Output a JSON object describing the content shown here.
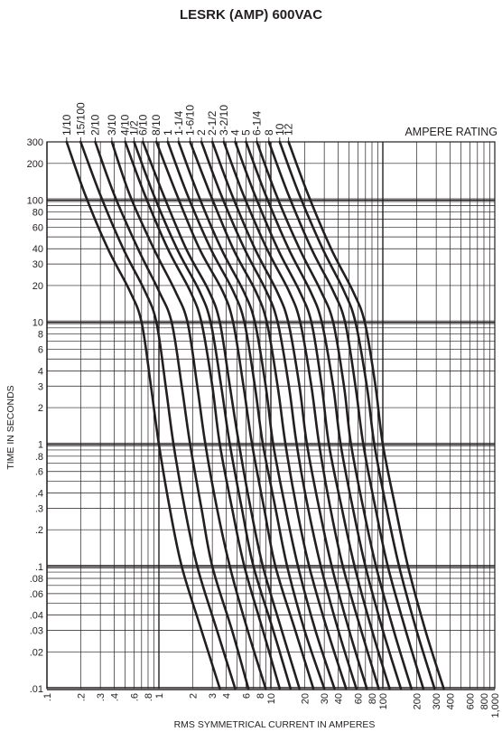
{
  "chart_data": {
    "type": "line",
    "title": "LESRK (AMP) 600VAC",
    "xlabel": "RMS SYMMETRICAL CURRENT IN AMPERES",
    "ylabel": "TIME IN SECONDS",
    "legend_title": "AMPERE RATING",
    "x_scale": "log",
    "y_scale": "log",
    "xlim": [
      0.1,
      1000
    ],
    "ylim": [
      0.01,
      300
    ],
    "grid": true,
    "x_ticks": [
      {
        "v": 0.1,
        "label": ".1"
      },
      {
        "v": 0.2,
        "label": ".2"
      },
      {
        "v": 0.3,
        "label": ".3"
      },
      {
        "v": 0.4,
        "label": ".4"
      },
      {
        "v": 0.6,
        "label": ".6"
      },
      {
        "v": 0.8,
        "label": ".8"
      },
      {
        "v": 1,
        "label": "1"
      },
      {
        "v": 2,
        "label": "2"
      },
      {
        "v": 3,
        "label": "3"
      },
      {
        "v": 4,
        "label": "4"
      },
      {
        "v": 6,
        "label": "6"
      },
      {
        "v": 8,
        "label": "8"
      },
      {
        "v": 10,
        "label": "10"
      },
      {
        "v": 20,
        "label": "20"
      },
      {
        "v": 30,
        "label": "30"
      },
      {
        "v": 40,
        "label": "40"
      },
      {
        "v": 60,
        "label": "60"
      },
      {
        "v": 80,
        "label": "80"
      },
      {
        "v": 100,
        "label": "100"
      },
      {
        "v": 200,
        "label": "200"
      },
      {
        "v": 300,
        "label": "300"
      },
      {
        "v": 400,
        "label": "400"
      },
      {
        "v": 600,
        "label": "600"
      },
      {
        "v": 800,
        "label": "800"
      },
      {
        "v": 1000,
        "label": "1,000"
      }
    ],
    "y_ticks": [
      {
        "v": 300,
        "label": "300"
      },
      {
        "v": 200,
        "label": "200"
      },
      {
        "v": 100,
        "label": "100"
      },
      {
        "v": 80,
        "label": "80"
      },
      {
        "v": 60,
        "label": "60"
      },
      {
        "v": 40,
        "label": "40"
      },
      {
        "v": 30,
        "label": "30"
      },
      {
        "v": 20,
        "label": "20"
      },
      {
        "v": 10,
        "label": "10"
      },
      {
        "v": 8,
        "label": "8"
      },
      {
        "v": 6,
        "label": "6"
      },
      {
        "v": 4,
        "label": "4"
      },
      {
        "v": 3,
        "label": "3"
      },
      {
        "v": 2,
        "label": "2"
      },
      {
        "v": 1,
        "label": "1"
      },
      {
        "v": 0.8,
        "label": ".8"
      },
      {
        "v": 0.6,
        "label": ".6"
      },
      {
        "v": 0.4,
        "label": ".4"
      },
      {
        "v": 0.3,
        "label": ".3"
      },
      {
        "v": 0.2,
        "label": ".2"
      },
      {
        "v": 0.1,
        "label": ".1"
      },
      {
        "v": 0.08,
        "label": ".08"
      },
      {
        "v": 0.06,
        "label": ".06"
      },
      {
        "v": 0.04,
        "label": ".04"
      },
      {
        "v": 0.03,
        "label": ".03"
      },
      {
        "v": 0.02,
        "label": ".02"
      },
      {
        "v": 0.01,
        "label": ".01"
      }
    ],
    "series": [
      {
        "name": "1/10",
        "points": [
          [
            0.15,
            300
          ],
          [
            0.22,
            110
          ],
          [
            0.35,
            40
          ],
          [
            0.55,
            18
          ],
          [
            0.7,
            10
          ],
          [
            0.85,
            3
          ],
          [
            1.0,
            1
          ],
          [
            1.25,
            0.3
          ],
          [
            1.6,
            0.1
          ],
          [
            2.4,
            0.03
          ],
          [
            3.5,
            0.01
          ]
        ]
      },
      {
        "name": "15/100",
        "points": [
          [
            0.2,
            300
          ],
          [
            0.3,
            110
          ],
          [
            0.48,
            40
          ],
          [
            0.75,
            18
          ],
          [
            0.95,
            10
          ],
          [
            1.15,
            3
          ],
          [
            1.35,
            1
          ],
          [
            1.7,
            0.3
          ],
          [
            2.2,
            0.1
          ],
          [
            3.3,
            0.03
          ],
          [
            4.8,
            0.01
          ]
        ]
      },
      {
        "name": "2/10",
        "points": [
          [
            0.27,
            300
          ],
          [
            0.4,
            110
          ],
          [
            0.65,
            40
          ],
          [
            1.0,
            18
          ],
          [
            1.3,
            10
          ],
          [
            1.6,
            3
          ],
          [
            1.9,
            1
          ],
          [
            2.4,
            0.3
          ],
          [
            3.0,
            0.1
          ],
          [
            4.5,
            0.03
          ],
          [
            6.3,
            0.01
          ]
        ]
      },
      {
        "name": "3/10",
        "points": [
          [
            0.38,
            300
          ],
          [
            0.55,
            110
          ],
          [
            0.9,
            40
          ],
          [
            1.4,
            18
          ],
          [
            1.8,
            10
          ],
          [
            2.2,
            3
          ],
          [
            2.6,
            1
          ],
          [
            3.3,
            0.3
          ],
          [
            4.3,
            0.1
          ],
          [
            6.2,
            0.03
          ],
          [
            9.0,
            0.01
          ]
        ]
      },
      {
        "name": "4/10",
        "points": [
          [
            0.5,
            300
          ],
          [
            0.75,
            110
          ],
          [
            1.2,
            40
          ],
          [
            1.9,
            18
          ],
          [
            2.4,
            10
          ],
          [
            3.0,
            3
          ],
          [
            3.5,
            1
          ],
          [
            4.5,
            0.3
          ],
          [
            5.8,
            0.1
          ],
          [
            8.5,
            0.03
          ],
          [
            12.0,
            0.01
          ]
        ]
      },
      {
        "name": "1/2",
        "points": [
          [
            0.6,
            300
          ],
          [
            0.9,
            110
          ],
          [
            1.45,
            40
          ],
          [
            2.3,
            18
          ],
          [
            2.9,
            10
          ],
          [
            3.6,
            3
          ],
          [
            4.3,
            1
          ],
          [
            5.5,
            0.3
          ],
          [
            7.0,
            0.1
          ],
          [
            10.5,
            0.03
          ],
          [
            15.0,
            0.01
          ]
        ]
      },
      {
        "name": "6/10",
        "points": [
          [
            0.72,
            300
          ],
          [
            1.1,
            110
          ],
          [
            1.75,
            40
          ],
          [
            2.8,
            18
          ],
          [
            3.5,
            10
          ],
          [
            4.3,
            3
          ],
          [
            5.2,
            1
          ],
          [
            6.6,
            0.3
          ],
          [
            8.5,
            0.1
          ],
          [
            12.5,
            0.03
          ],
          [
            18.0,
            0.01
          ]
        ]
      },
      {
        "name": "8/10",
        "points": [
          [
            0.95,
            300
          ],
          [
            1.45,
            110
          ],
          [
            2.3,
            40
          ],
          [
            3.7,
            18
          ],
          [
            4.6,
            10
          ],
          [
            5.7,
            3
          ],
          [
            6.8,
            1
          ],
          [
            8.7,
            0.3
          ],
          [
            11.0,
            0.1
          ],
          [
            16.5,
            0.03
          ],
          [
            24.0,
            0.01
          ]
        ]
      },
      {
        "name": "1",
        "points": [
          [
            1.2,
            300
          ],
          [
            1.8,
            110
          ],
          [
            2.9,
            40
          ],
          [
            4.6,
            18
          ],
          [
            5.8,
            10
          ],
          [
            7.2,
            3
          ],
          [
            8.5,
            1
          ],
          [
            11.0,
            0.3
          ],
          [
            14.0,
            0.1
          ],
          [
            20.0,
            0.03
          ],
          [
            30.0,
            0.01
          ]
        ]
      },
      {
        "name": "1-1/4",
        "points": [
          [
            1.5,
            300
          ],
          [
            2.25,
            110
          ],
          [
            3.6,
            40
          ],
          [
            5.7,
            18
          ],
          [
            7.2,
            10
          ],
          [
            9.0,
            3
          ],
          [
            10.5,
            1
          ],
          [
            13.5,
            0.3
          ],
          [
            17.5,
            0.1
          ],
          [
            25.0,
            0.03
          ],
          [
            37.0,
            0.01
          ]
        ]
      },
      {
        "name": "1-6/10",
        "points": [
          [
            1.9,
            300
          ],
          [
            2.9,
            110
          ],
          [
            4.6,
            40
          ],
          [
            7.3,
            18
          ],
          [
            9.2,
            10
          ],
          [
            11.5,
            3
          ],
          [
            13.5,
            1
          ],
          [
            17.0,
            0.3
          ],
          [
            22.0,
            0.1
          ],
          [
            32.0,
            0.03
          ],
          [
            47.0,
            0.01
          ]
        ]
      },
      {
        "name": "2",
        "points": [
          [
            2.4,
            300
          ],
          [
            3.6,
            110
          ],
          [
            5.8,
            40
          ],
          [
            9.1,
            18
          ],
          [
            11.5,
            10
          ],
          [
            14.5,
            3
          ],
          [
            17.0,
            1
          ],
          [
            21.5,
            0.3
          ],
          [
            28.0,
            0.1
          ],
          [
            40.0,
            0.03
          ],
          [
            58.0,
            0.01
          ]
        ]
      },
      {
        "name": "2-1/2",
        "points": [
          [
            3.0,
            300
          ],
          [
            4.5,
            110
          ],
          [
            7.2,
            40
          ],
          [
            11.3,
            18
          ],
          [
            14.3,
            10
          ],
          [
            18.0,
            3
          ],
          [
            21.0,
            1
          ],
          [
            27.0,
            0.3
          ],
          [
            35.0,
            0.1
          ],
          [
            50.0,
            0.03
          ],
          [
            72.0,
            0.01
          ]
        ]
      },
      {
        "name": "3-2/10",
        "points": [
          [
            3.8,
            300
          ],
          [
            5.7,
            110
          ],
          [
            9.2,
            40
          ],
          [
            14.5,
            18
          ],
          [
            18.3,
            10
          ],
          [
            23.0,
            3
          ],
          [
            27.0,
            1
          ],
          [
            34.0,
            0.3
          ],
          [
            44.0,
            0.1
          ],
          [
            64.0,
            0.03
          ],
          [
            92.0,
            0.01
          ]
        ]
      },
      {
        "name": "4",
        "points": [
          [
            4.8,
            300
          ],
          [
            7.2,
            110
          ],
          [
            11.5,
            40
          ],
          [
            18.0,
            18
          ],
          [
            23.0,
            10
          ],
          [
            28.5,
            3
          ],
          [
            33.0,
            1
          ],
          [
            43.0,
            0.3
          ],
          [
            56.0,
            0.1
          ],
          [
            80.0,
            0.03
          ],
          [
            115.0,
            0.01
          ]
        ]
      },
      {
        "name": "5",
        "points": [
          [
            6.0,
            300
          ],
          [
            9.0,
            110
          ],
          [
            14.4,
            40
          ],
          [
            22.5,
            18
          ],
          [
            28.5,
            10
          ],
          [
            36.0,
            3
          ],
          [
            42.0,
            1
          ],
          [
            54.0,
            0.3
          ],
          [
            70.0,
            0.1
          ],
          [
            100.0,
            0.03
          ],
          [
            145.0,
            0.01
          ]
        ]
      },
      {
        "name": "6-1/4",
        "points": [
          [
            7.5,
            300
          ],
          [
            11.2,
            110
          ],
          [
            18.0,
            40
          ],
          [
            28.0,
            18
          ],
          [
            36.0,
            10
          ],
          [
            45.0,
            3
          ],
          [
            52.0,
            1
          ],
          [
            67.0,
            0.3
          ],
          [
            87.0,
            0.1
          ],
          [
            125.0,
            0.03
          ],
          [
            180.0,
            0.01
          ]
        ]
      },
      {
        "name": "8",
        "points": [
          [
            9.6,
            300
          ],
          [
            14.4,
            110
          ],
          [
            23.0,
            40
          ],
          [
            36.0,
            18
          ],
          [
            46.0,
            10
          ],
          [
            57.0,
            3
          ],
          [
            67.0,
            1
          ],
          [
            86.0,
            0.3
          ],
          [
            111.0,
            0.1
          ],
          [
            160.0,
            0.03
          ],
          [
            230.0,
            0.01
          ]
        ]
      },
      {
        "name": "10",
        "points": [
          [
            12.0,
            300
          ],
          [
            18.0,
            110
          ],
          [
            29.0,
            40
          ],
          [
            45.0,
            18
          ],
          [
            57.0,
            10
          ],
          [
            72.0,
            3
          ],
          [
            84.0,
            1
          ],
          [
            108.0,
            0.3
          ],
          [
            140.0,
            0.1
          ],
          [
            200.0,
            0.03
          ],
          [
            290.0,
            0.01
          ]
        ]
      },
      {
        "name": "12",
        "points": [
          [
            14.4,
            300
          ],
          [
            21.6,
            110
          ],
          [
            34.5,
            40
          ],
          [
            54.0,
            18
          ],
          [
            69.0,
            10
          ],
          [
            86.0,
            3
          ],
          [
            100.0,
            1
          ],
          [
            130.0,
            0.3
          ],
          [
            168.0,
            0.1
          ],
          [
            240.0,
            0.03
          ],
          [
            350.0,
            0.01
          ]
        ]
      }
    ]
  }
}
